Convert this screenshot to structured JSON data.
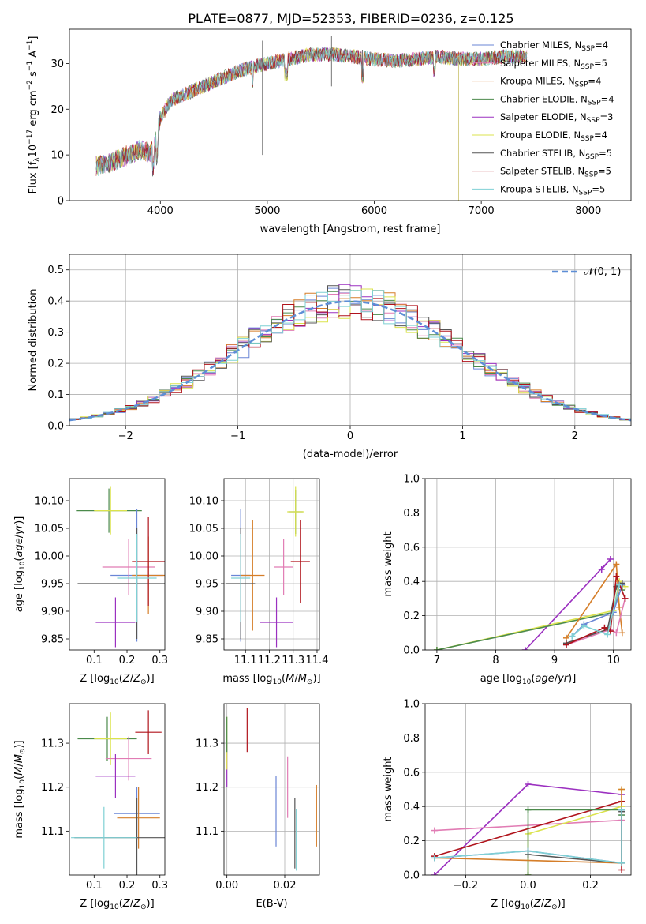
{
  "figure": {
    "title": "PLATE=0877, MJD=52353, FIBERID=0236, z=0.125"
  },
  "colors": {
    "Chabrier MILES": "#6a86d6",
    "Salpeter MILES": "#e17cb4",
    "Kroupa MILES": "#d57e29",
    "Chabrier ELODIE": "#4b8a4b",
    "Salpeter ELODIE": "#9b30c0",
    "Kroupa ELODIE": "#dbe34d",
    "Chabrier STELIB": "#555555",
    "Salpeter STELIB": "#b0131b",
    "Kroupa STELIB": "#7fd0d4"
  },
  "chart_data": [
    {
      "id": "spectrum",
      "type": "line",
      "xlabel": "wavelength [Angstrom, rest frame]",
      "ylabel": "Flux [f_λ 10^-17 erg cm^-2 s^-1 A^-1]",
      "xlim": [
        3150,
        8400
      ],
      "ylim": [
        0,
        37.5
      ],
      "xticks": [
        4000,
        5000,
        6000,
        7000,
        8000
      ],
      "yticks": [
        0,
        10,
        20,
        30
      ],
      "grid": false,
      "legend_position": "top-right",
      "legend": [
        "Chabrier MILES, N_SSP=4",
        "Salpeter MILES, N_SSP=5",
        "Kroupa MILES, N_SSP=4",
        "Chabrier ELODIE, N_SSP=4",
        "Salpeter ELODIE, N_SSP=3",
        "Kroupa ELODIE, N_SSP=4",
        "Chabrier STELIB, N_SSP=5",
        "Salpeter STELIB, N_SSP=5",
        "Kroupa STELIB, N_SSP=5"
      ],
      "continuum": {
        "x": [
          3400,
          3500,
          3600,
          3700,
          3800,
          3900,
          3950,
          4000,
          4100,
          4200,
          4300,
          4400,
          4500,
          4700,
          4900,
          5000,
          5200,
          5400,
          5600,
          5800,
          6000,
          6200,
          6400,
          6600,
          6800,
          7000,
          7200,
          7400
        ],
        "y": [
          7.5,
          8,
          9,
          10,
          11,
          10.5,
          12,
          18,
          22,
          23,
          24,
          25,
          26,
          28,
          29.5,
          30,
          31,
          32,
          32,
          31.5,
          31,
          30.5,
          31,
          31.5,
          31,
          31,
          31.5,
          31.5
        ]
      }
    },
    {
      "id": "residuals",
      "type": "histogram",
      "xlabel": "(data-model)/error",
      "ylabel": "Normed distribution",
      "xlim": [
        -2.5,
        2.5
      ],
      "ylim": [
        0,
        0.55
      ],
      "xticks": [
        -2,
        -1,
        0,
        1,
        2
      ],
      "yticks": [
        0,
        0.1,
        0.2,
        0.3,
        0.4,
        0.5
      ],
      "grid": true,
      "legend_position": "top-right",
      "legend": [
        "𝒩(0, 1)"
      ]
    },
    {
      "id": "age-vs-Z",
      "type": "scatter",
      "xlabel": "Z [log10(Z/Z⊙)]",
      "ylabel": "age  [log10(age/yr)]",
      "xlim": [
        0.025,
        0.315
      ],
      "ylim": [
        9.83,
        10.14
      ],
      "xticks": [
        0.1,
        0.2,
        0.3
      ],
      "yticks": [
        9.85,
        9.9,
        9.95,
        10.0,
        10.05,
        10.1
      ],
      "grid": false,
      "points": [
        {
          "model": "Chabrier ELODIE",
          "x": 0.145,
          "xerr": 0.1,
          "y": 10.082,
          "yerr": 0.04
        },
        {
          "model": "Kroupa ELODIE",
          "x": 0.15,
          "xerr": 0.05,
          "y": 10.082,
          "yerr": 0.043
        },
        {
          "model": "Chabrier MILES",
          "x": 0.23,
          "xerr": 0.08,
          "y": 9.965,
          "yerr": 0.12
        },
        {
          "model": "Salpeter MILES",
          "x": 0.205,
          "xerr": 0.08,
          "y": 9.98,
          "yerr": 0.05
        },
        {
          "model": "Kroupa MILES",
          "x": 0.265,
          "xerr": 0.05,
          "y": 9.965,
          "yerr": 0.07
        },
        {
          "model": "Salpeter ELODIE",
          "x": 0.165,
          "xerr": 0.06,
          "y": 9.88,
          "yerr": 0.045
        },
        {
          "model": "Chabrier STELIB",
          "x": 0.23,
          "xerr": 0.18,
          "y": 9.95,
          "yerr": 0.1
        },
        {
          "model": "Salpeter STELIB",
          "x": 0.265,
          "xerr": 0.05,
          "y": 9.99,
          "yerr": 0.08
        },
        {
          "model": "Kroupa STELIB",
          "x": 0.23,
          "xerr": 0.06,
          "y": 9.96,
          "yerr": 0.08
        }
      ]
    },
    {
      "id": "age-vs-mass",
      "type": "scatter",
      "xlabel": "mass [log10(M/M⊙)]",
      "ylabel": "",
      "xlim": [
        11.01,
        11.41
      ],
      "ylim": [
        9.83,
        10.14
      ],
      "xticks": [
        11.1,
        11.2,
        11.3,
        11.4
      ],
      "xticklabels": [
        "11.1",
        "11.2",
        "11.3",
        "11.4"
      ],
      "yticks": [
        9.85,
        9.9,
        9.95,
        10.0,
        10.05,
        10.1
      ],
      "grid": true,
      "points": [
        {
          "model": "Chabrier ELODIE",
          "x": 11.31,
          "xerr": 0.03,
          "y": 10.08,
          "yerr": 0.04
        },
        {
          "model": "Kroupa ELODIE",
          "x": 11.31,
          "xerr": 0.035,
          "y": 10.08,
          "yerr": 0.045
        },
        {
          "model": "Chabrier MILES",
          "x": 11.08,
          "xerr": 0.04,
          "y": 9.965,
          "yerr": 0.12
        },
        {
          "model": "Salpeter MILES",
          "x": 11.26,
          "xerr": 0.04,
          "y": 9.98,
          "yerr": 0.05
        },
        {
          "model": "Kroupa MILES",
          "x": 11.13,
          "xerr": 0.05,
          "y": 9.965,
          "yerr": 0.1
        },
        {
          "model": "Salpeter ELODIE",
          "x": 11.23,
          "xerr": 0.07,
          "y": 9.88,
          "yerr": 0.045
        },
        {
          "model": "Chabrier STELIB",
          "x": 11.08,
          "xerr": 0.06,
          "y": 9.95,
          "yerr": 0.1
        },
        {
          "model": "Salpeter STELIB",
          "x": 11.33,
          "xerr": 0.04,
          "y": 9.99,
          "yerr": 0.075
        },
        {
          "model": "Kroupa STELIB",
          "x": 11.08,
          "xerr": 0.04,
          "y": 9.96,
          "yerr": 0.08
        }
      ]
    },
    {
      "id": "mass-weight-vs-age",
      "type": "line",
      "xlabel": "age  [log10(age/yr)]",
      "ylabel": "mass weight",
      "xlim": [
        6.8,
        10.3
      ],
      "ylim": [
        0,
        1
      ],
      "xticks": [
        7,
        8,
        9,
        10
      ],
      "yticks": [
        0,
        0.2,
        0.4,
        0.6,
        0.8,
        1.0
      ],
      "grid": true,
      "series": [
        {
          "model": "Salpeter ELODIE",
          "x": [
            8.5,
            9.95,
            9.8
          ],
          "y": [
            0.0,
            0.53,
            0.47
          ]
        },
        {
          "model": "Kroupa ELODIE",
          "x": [
            7.0,
            10.0,
            10.1,
            10.2
          ],
          "y": [
            0.0,
            0.23,
            0.4,
            0.37
          ]
        },
        {
          "model": "Chabrier ELODIE",
          "x": [
            7.0,
            10.0,
            10.1,
            10.15
          ],
          "y": [
            0.0,
            0.22,
            0.38,
            0.35
          ]
        },
        {
          "model": "Kroupa MILES",
          "x": [
            9.2,
            10.05,
            10.1,
            10.15
          ],
          "y": [
            0.07,
            0.5,
            0.25,
            0.1
          ]
        },
        {
          "model": "Chabrier MILES",
          "x": [
            9.3,
            9.5,
            10.0,
            10.15
          ],
          "y": [
            0.08,
            0.15,
            0.22,
            0.38
          ]
        },
        {
          "model": "Salpeter MILES",
          "x": [
            9.2,
            9.95,
            10.05,
            10.2
          ],
          "y": [
            0.03,
            0.12,
            0.1,
            0.3
          ]
        },
        {
          "model": "Chabrier STELIB",
          "x": [
            9.2,
            9.9,
            10.05,
            10.15
          ],
          "y": [
            0.04,
            0.12,
            0.37,
            0.39
          ]
        },
        {
          "model": "Salpeter STELIB",
          "x": [
            9.2,
            9.85,
            9.95,
            10.05,
            10.2
          ],
          "y": [
            0.03,
            0.13,
            0.11,
            0.43,
            0.3
          ]
        },
        {
          "model": "Kroupa STELIB",
          "x": [
            9.3,
            9.5,
            9.9,
            10.1
          ],
          "y": [
            0.08,
            0.14,
            0.09,
            0.38
          ]
        }
      ]
    },
    {
      "id": "mass-vs-Z",
      "type": "scatter",
      "xlabel": "Z [log10(Z/Z⊙)]",
      "ylabel": "mass [log10(M/M⊙)]",
      "xlim": [
        0.025,
        0.315
      ],
      "ylim": [
        11.0,
        11.39
      ],
      "xticks": [
        0.1,
        0.2,
        0.3
      ],
      "yticks": [
        11.1,
        11.2,
        11.3
      ],
      "grid": false,
      "points": [
        {
          "model": "Chabrier ELODIE",
          "x": 0.14,
          "xerr": 0.09,
          "y": 11.31,
          "yerr": 0.05
        },
        {
          "model": "Kroupa ELODIE",
          "x": 0.15,
          "xerr": 0.05,
          "y": 11.31,
          "yerr": 0.06
        },
        {
          "model": "Salpeter MILES",
          "x": 0.205,
          "xerr": 0.07,
          "y": 11.265,
          "yerr": 0.05
        },
        {
          "model": "Salpeter ELODIE",
          "x": 0.165,
          "xerr": 0.06,
          "y": 11.225,
          "yerr": 0.05
        },
        {
          "model": "Salpeter STELIB",
          "x": 0.265,
          "xerr": 0.04,
          "y": 11.325,
          "yerr": 0.05
        },
        {
          "model": "Chabrier MILES",
          "x": 0.23,
          "xerr": 0.07,
          "y": 11.14,
          "yerr": 0.06
        },
        {
          "model": "Kroupa MILES",
          "x": 0.235,
          "xerr": 0.065,
          "y": 11.13,
          "yerr": 0.07
        },
        {
          "model": "Chabrier STELIB",
          "x": 0.23,
          "xerr": 0.19,
          "y": 11.085,
          "yerr": 0.09
        },
        {
          "model": "Kroupa STELIB",
          "x": 0.13,
          "xerr": 0.1,
          "y": 11.085,
          "yerr": 0.07
        }
      ]
    },
    {
      "id": "mass-vs-EBV",
      "type": "scatter",
      "xlabel": "E(B-V)",
      "ylabel": "",
      "xlim": [
        -0.001,
        0.032
      ],
      "ylim": [
        11.0,
        11.39
      ],
      "xticks": [
        0.0,
        0.02
      ],
      "xticklabels": [
        "0.00",
        "0.02"
      ],
      "yticks": [
        11.1,
        11.2,
        11.3
      ],
      "grid": true,
      "points": [
        {
          "model": "Salpeter ELODIE",
          "x": 0.0,
          "y": 11.25,
          "yerr": 0.05
        },
        {
          "model": "Kroupa ELODIE",
          "x": 0.0,
          "y": 11.3,
          "yerr": 0.06
        },
        {
          "model": "Chabrier ELODIE",
          "x": 0.0,
          "y": 11.32,
          "yerr": 0.04
        },
        {
          "model": "Salpeter STELIB",
          "x": 0.007,
          "y": 11.33,
          "yerr": 0.05
        },
        {
          "model": "Chabrier MILES",
          "x": 0.017,
          "y": 11.145,
          "yerr": 0.08
        },
        {
          "model": "Salpeter MILES",
          "x": 0.021,
          "y": 11.2,
          "yerr": 0.07
        },
        {
          "model": "Chabrier STELIB",
          "x": 0.0235,
          "y": 11.095,
          "yerr": 0.08
        },
        {
          "model": "Kroupa STELIB",
          "x": 0.024,
          "y": 11.08,
          "yerr": 0.07
        },
        {
          "model": "Kroupa MILES",
          "x": 0.031,
          "y": 11.135,
          "yerr": 0.07
        }
      ]
    },
    {
      "id": "mass-weight-vs-Z",
      "type": "line",
      "xlabel": "Z [log10(Z/Z⊙)]",
      "ylabel": "mass weight",
      "xlim": [
        -0.33,
        0.33
      ],
      "ylim": [
        0,
        1
      ],
      "xticks": [
        -0.2,
        0.0,
        0.2
      ],
      "yticks": [
        0,
        0.2,
        0.4,
        0.6,
        0.8,
        1.0
      ],
      "grid": true,
      "series": [
        {
          "model": "Salpeter ELODIE",
          "x": [
            -0.3,
            0.0,
            0.3
          ],
          "y": [
            0.0,
            0.53,
            0.47
          ]
        },
        {
          "model": "Salpeter MILES",
          "x": [
            -0.3,
            0.3
          ],
          "y": [
            0.26,
            0.32
          ]
        },
        {
          "model": "Salpeter STELIB",
          "x": [
            -0.3,
            0.3,
            0.3
          ],
          "y": [
            0.11,
            0.43,
            0.03
          ]
        },
        {
          "model": "Kroupa ELODIE",
          "x": [
            0.0,
            0.0,
            0.3,
            0.3
          ],
          "y": [
            0.0,
            0.24,
            0.4,
            0.5
          ]
        },
        {
          "model": "Chabrier ELODIE",
          "x": [
            0.0,
            0.0,
            0.3,
            0.3
          ],
          "y": [
            0.0,
            0.38,
            0.38,
            0.35
          ]
        },
        {
          "model": "Kroupa MILES",
          "x": [
            -0.3,
            0.3,
            0.3
          ],
          "y": [
            0.1,
            0.07,
            0.5
          ]
        },
        {
          "model": "Chabrier MILES",
          "x": [
            -0.3,
            0.0,
            0.3,
            0.3
          ],
          "y": [
            0.1,
            0.14,
            0.07,
            0.38
          ]
        },
        {
          "model": "Chabrier STELIB",
          "x": [
            0.0,
            0.3,
            0.3
          ],
          "y": [
            0.12,
            0.07,
            0.37
          ]
        },
        {
          "model": "Kroupa STELIB",
          "x": [
            -0.3,
            0.0,
            0.3,
            0.3
          ],
          "y": [
            0.1,
            0.14,
            0.07,
            0.38
          ]
        }
      ]
    }
  ]
}
